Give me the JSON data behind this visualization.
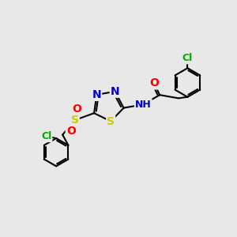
{
  "background_color": "#e8e8e8",
  "bond_color": "#000000",
  "atom_colors": {
    "N": "#0000cc",
    "O": "#ff0000",
    "S": "#cccc00",
    "Cl": "#00aa00",
    "H": "#000000",
    "C": "#000000"
  },
  "bond_width": 1.5,
  "font_size_atom": 10
}
